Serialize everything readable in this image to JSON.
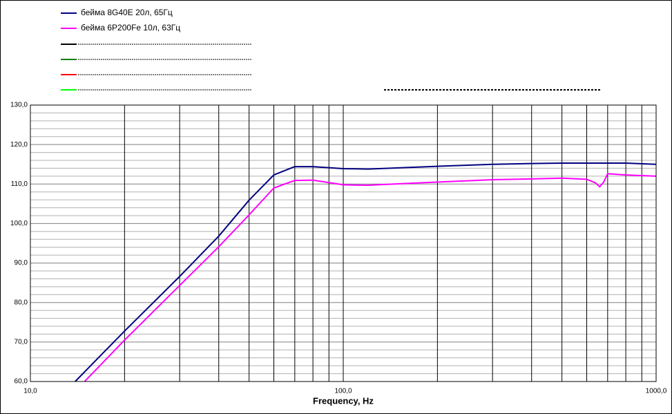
{
  "chart_data": {
    "type": "line",
    "x_label": "Frequency, Hz",
    "xscale": "log",
    "xlim": [
      10,
      1000
    ],
    "xticks": [
      {
        "value": 10,
        "label": "10,0"
      },
      {
        "value": 100,
        "label": "100,0"
      },
      {
        "value": 1000,
        "label": "1000,0"
      }
    ],
    "xminorticks": [
      20,
      30,
      40,
      50,
      60,
      70,
      80,
      90,
      200,
      300,
      400,
      500,
      600,
      700,
      800,
      900
    ],
    "ylim": [
      60,
      130
    ],
    "yticks": [
      {
        "value": 60,
        "label": "60,0"
      },
      {
        "value": 70,
        "label": "70,0"
      },
      {
        "value": 80,
        "label": "80,0"
      },
      {
        "value": 90,
        "label": "90,0"
      },
      {
        "value": 100,
        "label": "100,0"
      },
      {
        "value": 110,
        "label": "110,0"
      },
      {
        "value": 120,
        "label": "120,0"
      },
      {
        "value": 130,
        "label": "130,0"
      }
    ],
    "yminorticks": [
      62,
      64,
      66,
      68,
      72,
      74,
      76,
      78,
      82,
      84,
      86,
      88,
      92,
      94,
      96,
      98,
      102,
      104,
      106,
      108,
      112,
      114,
      116,
      118,
      122,
      124,
      126,
      128
    ],
    "grid": true,
    "series": [
      {
        "name": "бейма 8G40E 20л, 65Гц",
        "color": "#000080",
        "x": [
          13.9,
          20,
          30,
          40,
          50,
          60,
          70,
          80,
          100,
          120,
          200,
          300,
          400,
          500,
          700,
          800,
          1000
        ],
        "values": [
          60,
          72.8,
          86.6,
          96.8,
          105.9,
          112.3,
          114.4,
          114.4,
          113.9,
          113.8,
          114.5,
          115.0,
          115.2,
          115.3,
          115.3,
          115.3,
          115.0
        ]
      },
      {
        "name": "бейма 6P200Fe 10л, 63Гц",
        "color": "#ff00ff",
        "x": [
          14.9,
          20,
          30,
          40,
          50,
          60,
          70,
          80,
          100,
          120,
          200,
          300,
          400,
          500,
          600,
          640,
          660,
          680,
          700,
          800,
          1000
        ],
        "values": [
          60,
          70.5,
          84.3,
          94.1,
          102.2,
          109.0,
          110.9,
          111.0,
          109.8,
          109.7,
          110.5,
          111.1,
          111.3,
          111.5,
          111.2,
          110.3,
          109.3,
          110.5,
          112.6,
          112.3,
          112.0
        ]
      }
    ]
  }
}
